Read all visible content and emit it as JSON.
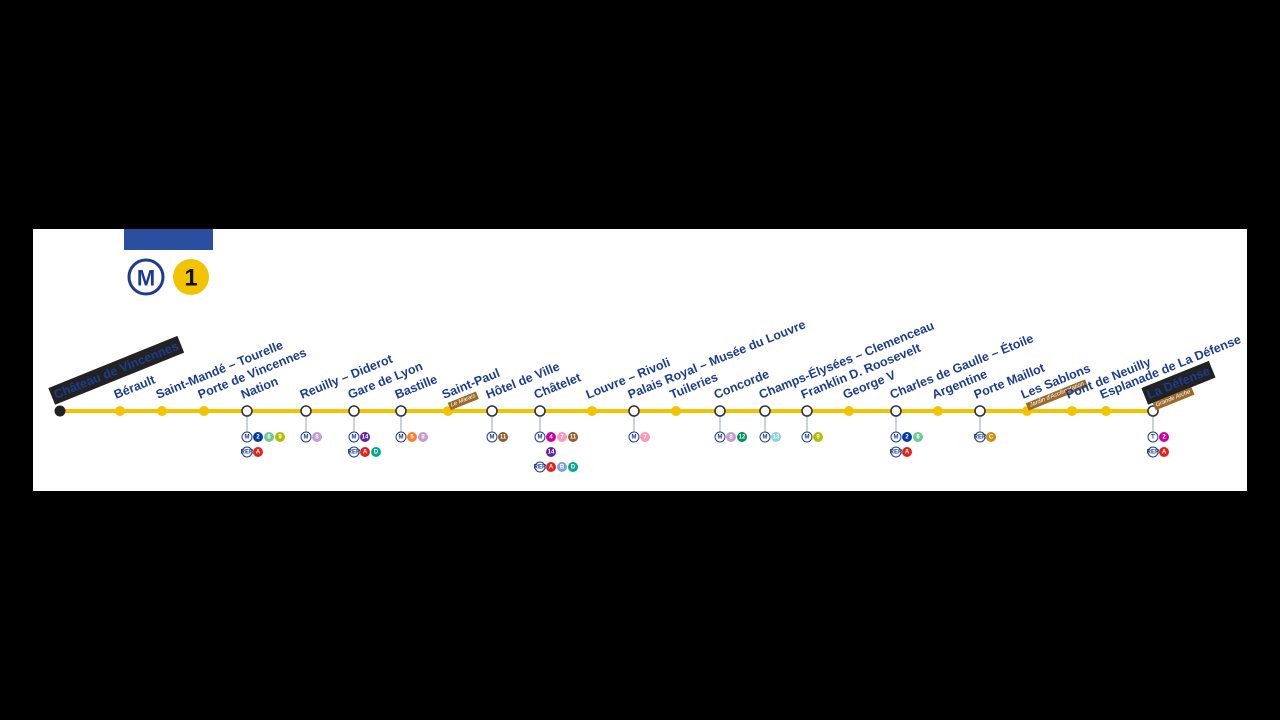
{
  "logo": {
    "mode": "M",
    "line": "1"
  },
  "stations": [
    {
      "name": "Château de Vincennes",
      "terminus": true,
      "rows": []
    },
    {
      "name": "Bérault",
      "rows": []
    },
    {
      "name": "Saint-Mandé – Tourelle",
      "rows": []
    },
    {
      "name": "Porte de Vincennes",
      "rows": []
    },
    {
      "name": "Nation",
      "interchange": true,
      "rows": [
        [
          {
            "label": "M"
          },
          {
            "label": "2",
            "color": "#003ca6"
          },
          {
            "label": "6",
            "color": "#6eca97"
          },
          {
            "label": "9",
            "color": "#b6bd00"
          }
        ],
        [
          {
            "label": "RER"
          },
          {
            "label": "A",
            "color": "#e2231a"
          }
        ]
      ]
    },
    {
      "name": "Reuilly – Diderot",
      "interchange": true,
      "rows": [
        [
          {
            "label": "M"
          },
          {
            "label": "8",
            "color": "#c59bd3"
          }
        ]
      ]
    },
    {
      "name": "Gare de Lyon",
      "interchange": true,
      "rows": [
        [
          {
            "label": "M"
          },
          {
            "label": "14",
            "color": "#62259d"
          }
        ],
        [
          {
            "label": "RER"
          },
          {
            "label": "A",
            "color": "#e2231a"
          },
          {
            "label": "D",
            "color": "#00a88f"
          }
        ]
      ]
    },
    {
      "name": "Bastille",
      "interchange": true,
      "rows": [
        [
          {
            "label": "M"
          },
          {
            "label": "5",
            "color": "#ff7e2e"
          },
          {
            "label": "8",
            "color": "#c59bd3"
          }
        ]
      ]
    },
    {
      "name": "Saint-Paul",
      "sub": "Le Marais",
      "rows": []
    },
    {
      "name": "Hôtel de Ville",
      "interchange": true,
      "rows": [
        [
          {
            "label": "M"
          },
          {
            "label": "11",
            "color": "#8d5e2a"
          }
        ]
      ]
    },
    {
      "name": "Châtelet",
      "interchange": true,
      "rows": [
        [
          {
            "label": "M"
          },
          {
            "label": "4",
            "color": "#cf009e"
          },
          {
            "label": "7",
            "color": "#fa9aba"
          },
          {
            "label": "11",
            "color": "#8d5e2a"
          }
        ],
        [
          {
            "label": "14",
            "color": "#62259d"
          }
        ],
        [
          {
            "label": "RER"
          },
          {
            "label": "A",
            "color": "#e2231a"
          },
          {
            "label": "B",
            "color": "#7ba3dc"
          },
          {
            "label": "D",
            "color": "#00a88f"
          }
        ]
      ]
    },
    {
      "name": "Louvre – Rivoli",
      "rows": []
    },
    {
      "name": "Palais Royal – Musée du Louvre",
      "interchange": true,
      "rows": [
        [
          {
            "label": "M"
          },
          {
            "label": "7",
            "color": "#fa9aba"
          }
        ]
      ]
    },
    {
      "name": "Tuileries",
      "rows": []
    },
    {
      "name": "Concorde",
      "interchange": true,
      "rows": [
        [
          {
            "label": "M"
          },
          {
            "label": "8",
            "color": "#c59bd3"
          },
          {
            "label": "12",
            "color": "#008b5b"
          }
        ]
      ]
    },
    {
      "name": "Champs-Élysées – Clemenceau",
      "interchange": true,
      "rows": [
        [
          {
            "label": "M"
          },
          {
            "label": "13",
            "color": "#87d3df"
          }
        ]
      ]
    },
    {
      "name": "Franklin D. Roosevelt",
      "interchange": true,
      "rows": [
        [
          {
            "label": "M"
          },
          {
            "label": "9",
            "color": "#b6bd00"
          }
        ]
      ]
    },
    {
      "name": "George V",
      "rows": []
    },
    {
      "name": "Charles de Gaulle – Étoile",
      "interchange": true,
      "rows": [
        [
          {
            "label": "M"
          },
          {
            "label": "2",
            "color": "#003ca6"
          },
          {
            "label": "6",
            "color": "#6eca97"
          }
        ],
        [
          {
            "label": "RER"
          },
          {
            "label": "A",
            "color": "#e2231a"
          }
        ]
      ]
    },
    {
      "name": "Argentine",
      "rows": []
    },
    {
      "name": "Porte Maillot",
      "interchange": true,
      "rows": [
        [
          {
            "label": "RER"
          },
          {
            "label": "C",
            "color": "#c9910d"
          }
        ]
      ]
    },
    {
      "name": "Les Sablons",
      "sub": "Jardin d'Acclimatation",
      "rows": []
    },
    {
      "name": "Pont de Neuilly",
      "rows": []
    },
    {
      "name": "Esplanade de La Défense",
      "rows": []
    },
    {
      "name": "La Défense",
      "sub": "Grande Arche",
      "terminus": true,
      "interchange": true,
      "rows": [
        [
          {
            "label": "T"
          },
          {
            "label": "2",
            "color": "#cf009e"
          }
        ],
        [
          {
            "label": "RER"
          },
          {
            "label": "A",
            "color": "#e2231a"
          }
        ]
      ]
    }
  ]
}
